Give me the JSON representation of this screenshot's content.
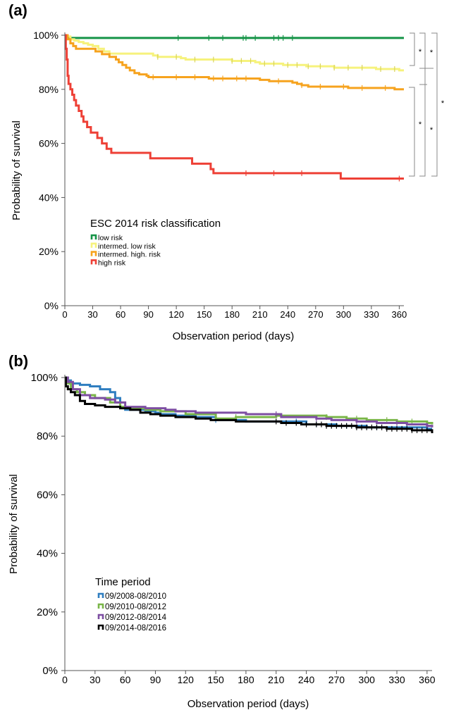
{
  "chart_data": [
    {
      "panel_label": "(a)",
      "type": "line",
      "xlabel": "Observation period (days)",
      "ylabel": "Probability of survival",
      "xlim": [
        0,
        365
      ],
      "ylim": [
        0,
        100
      ],
      "xticks": [
        0,
        30,
        60,
        90,
        120,
        150,
        180,
        210,
        240,
        270,
        300,
        330,
        360
      ],
      "yticks": [
        0,
        20,
        40,
        60,
        80,
        100
      ],
      "ytick_labels": [
        "0%",
        "20%",
        "40%",
        "60%",
        "80%",
        "100%"
      ],
      "grid": false,
      "legend": {
        "title": "ESC 2014 risk classification",
        "position": "lower-left"
      },
      "significance_marks": "*",
      "series": [
        {
          "name": "low risk",
          "color": "#159447",
          "points": [
            [
              0,
              100
            ],
            [
              2,
              99
            ],
            [
              365,
              99
            ]
          ],
          "censor_marks": [
            122,
            155,
            170,
            192,
            195,
            205,
            225,
            230,
            235,
            245
          ]
        },
        {
          "name": "intermed. low risk",
          "color": "#f6f27c",
          "points": [
            [
              0,
              100
            ],
            [
              3,
              99.5
            ],
            [
              6,
              98.5
            ],
            [
              10,
              98
            ],
            [
              15,
              97.5
            ],
            [
              20,
              97
            ],
            [
              25,
              96.5
            ],
            [
              30,
              96
            ],
            [
              36,
              95
            ],
            [
              42,
              94
            ],
            [
              48,
              93.2
            ],
            [
              90,
              93.2
            ],
            [
              95,
              92.5
            ],
            [
              100,
              92
            ],
            [
              120,
              92
            ],
            [
              125,
              91.5
            ],
            [
              130,
              91
            ],
            [
              175,
              91
            ],
            [
              180,
              90.5
            ],
            [
              200,
              90.5
            ],
            [
              205,
              90
            ],
            [
              210,
              89.5
            ],
            [
              230,
              89.5
            ],
            [
              235,
              89
            ],
            [
              255,
              89
            ],
            [
              260,
              88.5
            ],
            [
              285,
              88.5
            ],
            [
              290,
              88
            ],
            [
              330,
              88
            ],
            [
              335,
              87.5
            ],
            [
              355,
              87.5
            ],
            [
              360,
              87
            ],
            [
              365,
              87
            ]
          ],
          "censor_marks": [
            100,
            120,
            140,
            160,
            180,
            190,
            200,
            215,
            225,
            240,
            250,
            262,
            275,
            290,
            305,
            320,
            340,
            355
          ]
        },
        {
          "name": "intermed. high. risk",
          "color": "#f6a31e",
          "points": [
            [
              0,
              100
            ],
            [
              3,
              98.5
            ],
            [
              6,
              97
            ],
            [
              9,
              96
            ],
            [
              12,
              95
            ],
            [
              30,
              95
            ],
            [
              33,
              94
            ],
            [
              40,
              93
            ],
            [
              48,
              92
            ],
            [
              55,
              91
            ],
            [
              58,
              90
            ],
            [
              62,
              89
            ],
            [
              66,
              88
            ],
            [
              70,
              87
            ],
            [
              75,
              86
            ],
            [
              80,
              85.5
            ],
            [
              88,
              85
            ],
            [
              90,
              84.5
            ],
            [
              150,
              84.5
            ],
            [
              155,
              84
            ],
            [
              200,
              84
            ],
            [
              210,
              83.5
            ],
            [
              220,
              83
            ],
            [
              240,
              83
            ],
            [
              245,
              82.5
            ],
            [
              250,
              82
            ],
            [
              255,
              81.5
            ],
            [
              262,
              81
            ],
            [
              300,
              81
            ],
            [
              305,
              80.5
            ],
            [
              350,
              80.5
            ],
            [
              355,
              80
            ],
            [
              365,
              80
            ]
          ],
          "censor_marks": [
            95,
            120,
            140,
            160,
            170,
            185,
            195,
            230,
            255,
            275,
            300,
            320,
            345
          ]
        },
        {
          "name": "high risk",
          "color": "#ee4036",
          "points": [
            [
              0,
              100
            ],
            [
              1,
              95
            ],
            [
              2,
              91
            ],
            [
              3,
              85
            ],
            [
              4,
              82
            ],
            [
              6,
              80
            ],
            [
              8,
              78
            ],
            [
              10,
              76
            ],
            [
              12,
              74
            ],
            [
              15,
              72
            ],
            [
              18,
              70
            ],
            [
              20,
              68
            ],
            [
              24,
              66
            ],
            [
              28,
              64
            ],
            [
              35,
              62
            ],
            [
              40,
              60
            ],
            [
              45,
              58
            ],
            [
              50,
              56.5
            ],
            [
              90,
              56.5
            ],
            [
              92,
              54.5
            ],
            [
              135,
              54.5
            ],
            [
              137,
              52.5
            ],
            [
              155,
              52.5
            ],
            [
              157,
              50.5
            ],
            [
              160,
              49
            ],
            [
              295,
              49
            ],
            [
              297,
              47
            ],
            [
              365,
              47
            ]
          ],
          "censor_marks": [
            195,
            225,
            255,
            360
          ]
        }
      ]
    },
    {
      "panel_label": "(b)",
      "type": "line",
      "xlabel": "Observation period (days)",
      "ylabel": "Probability of survival",
      "xlim": [
        0,
        365
      ],
      "ylim": [
        0,
        100
      ],
      "xticks": [
        0,
        30,
        60,
        90,
        120,
        150,
        180,
        210,
        240,
        270,
        300,
        330,
        360
      ],
      "yticks": [
        0,
        20,
        40,
        60,
        80,
        100
      ],
      "ytick_labels": [
        "0%",
        "20%",
        "40%",
        "60%",
        "80%",
        "100%"
      ],
      "grid": false,
      "legend": {
        "title": "Time period",
        "position": "lower-left"
      },
      "series": [
        {
          "name": "09/2008-08/2010",
          "color": "#2f7ec0",
          "points": [
            [
              0,
              100
            ],
            [
              2,
              99
            ],
            [
              6,
              98
            ],
            [
              15,
              97.5
            ],
            [
              25,
              97
            ],
            [
              35,
              96
            ],
            [
              45,
              95
            ],
            [
              50,
              93
            ],
            [
              55,
              90
            ],
            [
              60,
              89
            ],
            [
              80,
              88.5
            ],
            [
              90,
              88
            ],
            [
              95,
              87.5
            ],
            [
              110,
              87
            ],
            [
              130,
              86.5
            ],
            [
              150,
              85.5
            ],
            [
              180,
              85
            ],
            [
              240,
              84
            ],
            [
              270,
              83.5
            ],
            [
              300,
              83
            ],
            [
              360,
              82.5
            ],
            [
              365,
              82.5
            ]
          ],
          "censor_marks": [
            150,
            230,
            250,
            280,
            310,
            340
          ]
        },
        {
          "name": "09/2010-08/2012",
          "color": "#7ab648",
          "points": [
            [
              0,
              100
            ],
            [
              3,
              98
            ],
            [
              6,
              96
            ],
            [
              12,
              95
            ],
            [
              20,
              94
            ],
            [
              30,
              93
            ],
            [
              45,
              91.5
            ],
            [
              55,
              90
            ],
            [
              60,
              89.5
            ],
            [
              80,
              89
            ],
            [
              95,
              88.5
            ],
            [
              120,
              87.5
            ],
            [
              150,
              86
            ],
            [
              165,
              86
            ],
            [
              170,
              86.5
            ],
            [
              200,
              86.5
            ],
            [
              210,
              87
            ],
            [
              260,
              86.5
            ],
            [
              280,
              86
            ],
            [
              300,
              85.5
            ],
            [
              330,
              85
            ],
            [
              360,
              84.5
            ],
            [
              365,
              84
            ]
          ],
          "censor_marks": [
            170,
            260,
            290,
            320,
            345
          ]
        },
        {
          "name": "09/2012-08/2014",
          "color": "#7d4ea2",
          "points": [
            [
              0,
              100
            ],
            [
              3,
              98.5
            ],
            [
              8,
              96
            ],
            [
              15,
              94
            ],
            [
              25,
              93
            ],
            [
              40,
              92.5
            ],
            [
              50,
              91.5
            ],
            [
              60,
              90
            ],
            [
              80,
              89.5
            ],
            [
              100,
              89
            ],
            [
              110,
              88.5
            ],
            [
              130,
              88
            ],
            [
              170,
              88
            ],
            [
              180,
              87.5
            ],
            [
              210,
              87.5
            ],
            [
              215,
              86.5
            ],
            [
              250,
              86
            ],
            [
              265,
              85.5
            ],
            [
              290,
              85
            ],
            [
              310,
              84.5
            ],
            [
              340,
              84
            ],
            [
              360,
              83.5
            ],
            [
              365,
              83
            ]
          ],
          "censor_marks": [
            210,
            250,
            290,
            330,
            360
          ]
        },
        {
          "name": "09/2014-08/2016",
          "color": "#000000",
          "points": [
            [
              0,
              100
            ],
            [
              1,
              97
            ],
            [
              3,
              96
            ],
            [
              6,
              95
            ],
            [
              10,
              94
            ],
            [
              15,
              92
            ],
            [
              20,
              91
            ],
            [
              30,
              90.5
            ],
            [
              40,
              90
            ],
            [
              55,
              89.5
            ],
            [
              65,
              89
            ],
            [
              75,
              88
            ],
            [
              85,
              87.5
            ],
            [
              95,
              87
            ],
            [
              110,
              86.5
            ],
            [
              130,
              86
            ],
            [
              145,
              85.5
            ],
            [
              170,
              85
            ],
            [
              200,
              85
            ],
            [
              215,
              84.5
            ],
            [
              235,
              84
            ],
            [
              260,
              83.5
            ],
            [
              290,
              83
            ],
            [
              320,
              82.5
            ],
            [
              345,
              82
            ],
            [
              360,
              82
            ],
            [
              365,
              81
            ]
          ],
          "censor_marks": [
            210,
            220,
            230,
            240,
            250,
            255,
            260,
            265,
            270,
            275,
            280,
            285,
            290,
            295,
            300,
            305,
            310,
            315,
            320,
            325,
            330,
            335,
            340,
            345,
            350,
            355,
            360
          ]
        }
      ]
    }
  ]
}
